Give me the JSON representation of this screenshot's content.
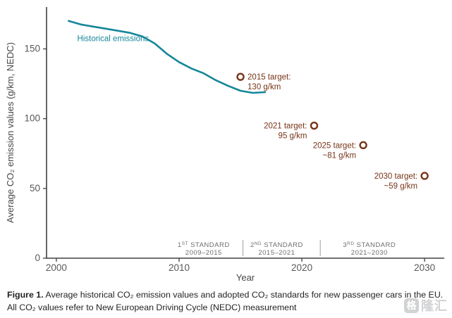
{
  "page": {
    "background": "#ffffff"
  },
  "caption": {
    "prefix": "Figure 1.",
    "text": " Average historical CO₂ emission values and adopted CO₂ standards for new passenger cars in the EU. All CO₂ values refer to New European Driving Cycle (NEDC) measurement"
  },
  "watermark": {
    "icon_char": "格",
    "text": "隆汇"
  },
  "chart_data": {
    "type": "line",
    "title": "",
    "xlabel": "Year",
    "ylabel": "Average CO₂ emission values (g/km, NEDC)",
    "xlim": [
      1999.2,
      2031.6
    ],
    "ylim": [
      0,
      180
    ],
    "x_ticks": [
      2000,
      2010,
      2020,
      2030
    ],
    "y_ticks": [
      0,
      50,
      100,
      150
    ],
    "grid": false,
    "axis_color": "#414042",
    "tick_label_color": "#58595b",
    "axis_title_color": "#47484a",
    "standard_label_color": "#6d6e71",
    "target_color": "#773418",
    "series": [
      {
        "name": "Historical emissions",
        "color": "#15869a",
        "x": [
          2001,
          2002,
          2003,
          2004,
          2005,
          2006,
          2007,
          2008,
          2009,
          2010,
          2011,
          2012,
          2013,
          2014,
          2015,
          2016,
          2017
        ],
        "values": [
          170,
          167.5,
          166,
          164.5,
          163,
          161.5,
          159,
          154,
          146.5,
          140.5,
          136,
          132.5,
          127.5,
          123.5,
          120,
          118.5,
          119
        ]
      }
    ],
    "series_label": {
      "text": "Historical emissions",
      "x": 2001.7,
      "y": 155.5,
      "color": "#15869a"
    },
    "targets": [
      {
        "year": 2015,
        "value": 130,
        "label": "2015 target:",
        "value_label": "130 g/km",
        "side": "right"
      },
      {
        "year": 2021,
        "value": 95,
        "label": "2021 target:",
        "value_label": "95 g/km",
        "side": "left"
      },
      {
        "year": 2025,
        "value": 81,
        "label": "2025 target:",
        "value_label": "~81 g/km",
        "side": "left"
      },
      {
        "year": 2030,
        "value": 59,
        "label": "2030 target:",
        "value_label": "~59 g/km",
        "side": "left"
      }
    ],
    "standards": [
      {
        "num": "1",
        "sup": "ST",
        "word": "STANDARD",
        "years": "2009–2015",
        "center_year": 2012.0
      },
      {
        "num": "2",
        "sup": "ND",
        "word": "STANDARD",
        "years": "2015–2021",
        "center_year": 2017.95
      },
      {
        "num": "3",
        "sup": "RD",
        "word": "STANDARD",
        "years": "2021–2030",
        "center_year": 2025.5
      }
    ],
    "standard_dividers": [
      2015.2,
      2021.5
    ]
  }
}
